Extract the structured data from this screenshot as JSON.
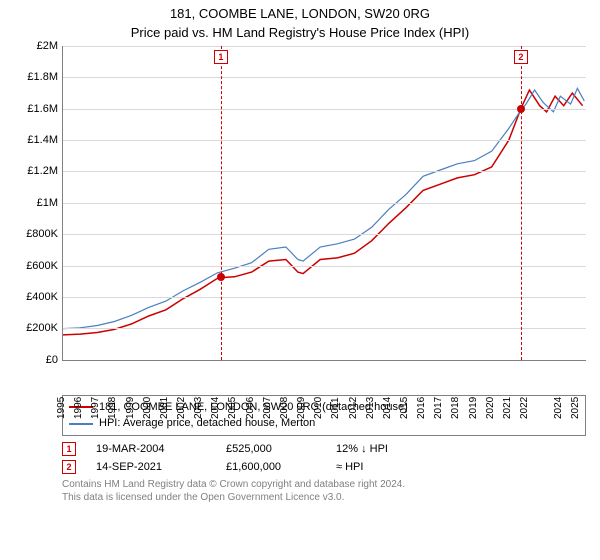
{
  "title": "181, COOMBE LANE, LONDON, SW20 0RG",
  "subtitle": "Price paid vs. HM Land Registry's House Price Index (HPI)",
  "chart": {
    "type": "line",
    "background_color": "#ffffff",
    "grid_color": "#d9d9d9",
    "axis_color": "#808080",
    "xlim": [
      1995,
      2025.5
    ],
    "ylim": [
      0,
      2000000
    ],
    "yticks": [
      {
        "v": 0,
        "label": "£0"
      },
      {
        "v": 200000,
        "label": "£200K"
      },
      {
        "v": 400000,
        "label": "£400K"
      },
      {
        "v": 600000,
        "label": "£600K"
      },
      {
        "v": 800000,
        "label": "£800K"
      },
      {
        "v": 1000000,
        "label": "£1M"
      },
      {
        "v": 1200000,
        "label": "£1.2M"
      },
      {
        "v": 1400000,
        "label": "£1.4M"
      },
      {
        "v": 1600000,
        "label": "£1.6M"
      },
      {
        "v": 1800000,
        "label": "£1.8M"
      },
      {
        "v": 2000000,
        "label": "£2M"
      }
    ],
    "xticks": [
      1995,
      1996,
      1997,
      1998,
      1999,
      2000,
      2001,
      2002,
      2003,
      2004,
      2005,
      2006,
      2007,
      2008,
      2009,
      2010,
      2011,
      2012,
      2013,
      2014,
      2015,
      2016,
      2017,
      2018,
      2019,
      2020,
      2021,
      2022,
      2024,
      2025
    ],
    "markers": [
      {
        "n": "1",
        "x": 2004.21,
        "y": 525000
      },
      {
        "n": "2",
        "x": 2021.7,
        "y": 1600000
      }
    ],
    "marker_line_color": "#cc0000",
    "marker_point_color": "#cc0000",
    "series": [
      {
        "name": "property",
        "label": "181, COOMBE LANE, LONDON, SW20 0RG (detached house)",
        "color": "#cc0000",
        "line_width": 1.5,
        "points": [
          [
            1995,
            160000
          ],
          [
            1996,
            165000
          ],
          [
            1997,
            175000
          ],
          [
            1998,
            195000
          ],
          [
            1999,
            230000
          ],
          [
            2000,
            280000
          ],
          [
            2001,
            320000
          ],
          [
            2002,
            390000
          ],
          [
            2003,
            450000
          ],
          [
            2004,
            520000
          ],
          [
            2004.21,
            525000
          ],
          [
            2005,
            530000
          ],
          [
            2006,
            560000
          ],
          [
            2007,
            630000
          ],
          [
            2008,
            640000
          ],
          [
            2008.7,
            560000
          ],
          [
            2009,
            550000
          ],
          [
            2010,
            640000
          ],
          [
            2011,
            650000
          ],
          [
            2012,
            680000
          ],
          [
            2013,
            760000
          ],
          [
            2014,
            870000
          ],
          [
            2015,
            970000
          ],
          [
            2016,
            1080000
          ],
          [
            2017,
            1120000
          ],
          [
            2018,
            1160000
          ],
          [
            2019,
            1180000
          ],
          [
            2020,
            1230000
          ],
          [
            2021,
            1400000
          ],
          [
            2021.7,
            1600000
          ],
          [
            2022.2,
            1720000
          ],
          [
            2022.8,
            1620000
          ],
          [
            2023.2,
            1580000
          ],
          [
            2023.7,
            1680000
          ],
          [
            2024.2,
            1620000
          ],
          [
            2024.7,
            1700000
          ],
          [
            2025.3,
            1620000
          ]
        ]
      },
      {
        "name": "hpi",
        "label": "HPI: Average price, detached house, Merton",
        "color": "#4a7fc1",
        "line_width": 1.2,
        "points": [
          [
            1995,
            200000
          ],
          [
            1996,
            205000
          ],
          [
            1997,
            220000
          ],
          [
            1998,
            245000
          ],
          [
            1999,
            285000
          ],
          [
            2000,
            335000
          ],
          [
            2001,
            375000
          ],
          [
            2002,
            440000
          ],
          [
            2003,
            495000
          ],
          [
            2004,
            555000
          ],
          [
            2005,
            585000
          ],
          [
            2006,
            620000
          ],
          [
            2007,
            705000
          ],
          [
            2008,
            720000
          ],
          [
            2008.7,
            640000
          ],
          [
            2009,
            630000
          ],
          [
            2010,
            720000
          ],
          [
            2011,
            740000
          ],
          [
            2012,
            770000
          ],
          [
            2013,
            845000
          ],
          [
            2014,
            960000
          ],
          [
            2015,
            1055000
          ],
          [
            2016,
            1170000
          ],
          [
            2017,
            1210000
          ],
          [
            2018,
            1250000
          ],
          [
            2019,
            1270000
          ],
          [
            2020,
            1330000
          ],
          [
            2021,
            1475000
          ],
          [
            2021.7,
            1590000
          ],
          [
            2022,
            1630000
          ],
          [
            2022.5,
            1720000
          ],
          [
            2023,
            1640000
          ],
          [
            2023.6,
            1580000
          ],
          [
            2024,
            1680000
          ],
          [
            2024.6,
            1630000
          ],
          [
            2025,
            1730000
          ],
          [
            2025.4,
            1650000
          ]
        ]
      }
    ]
  },
  "legend": {
    "rows": [
      {
        "color": "#cc0000",
        "label": "181, COOMBE LANE, LONDON, SW20 0RG (detached house)"
      },
      {
        "color": "#4a7fc1",
        "label": "HPI: Average price, detached house, Merton"
      }
    ]
  },
  "sales": [
    {
      "n": "1",
      "date": "19-MAR-2004",
      "price": "£525,000",
      "note": "12% ↓ HPI"
    },
    {
      "n": "2",
      "date": "14-SEP-2021",
      "price": "£1,600,000",
      "note": "≈ HPI"
    }
  ],
  "footer": {
    "line1": "Contains HM Land Registry data © Crown copyright and database right 2024.",
    "line2": "This data is licensed under the Open Government Licence v3.0."
  }
}
